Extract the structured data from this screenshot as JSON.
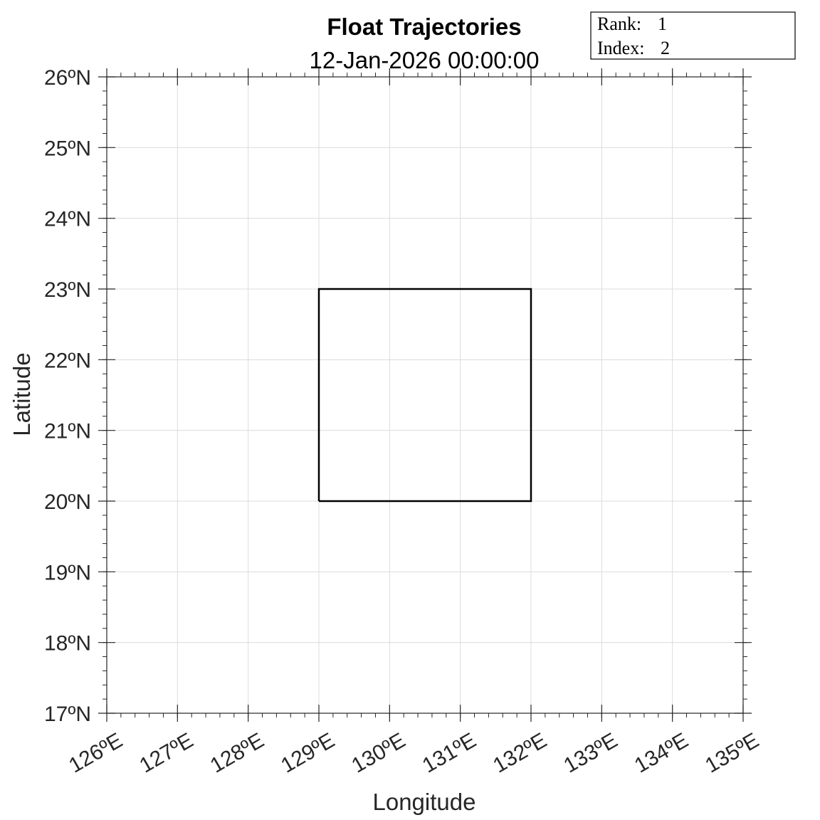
{
  "title": "Float Trajectories",
  "subtitle": "12-Jan-2026 00:00:00",
  "info_box": {
    "rank_label": "Rank:",
    "rank_value": "1",
    "index_label": "Index:",
    "index_value": "2"
  },
  "colors": {
    "grid": "#dcdcdc",
    "axis": "#262626",
    "region": "#000000"
  },
  "chart_data": {
    "type": "line",
    "xlabel": "Longitude",
    "ylabel": "Latitude",
    "xlim": [
      126,
      135
    ],
    "ylim": [
      17,
      26
    ],
    "grid": true,
    "x_ticks": [
      126,
      127,
      128,
      129,
      130,
      131,
      132,
      133,
      134,
      135
    ],
    "x_tick_labels": [
      "126ºE",
      "127ºE",
      "128ºE",
      "129ºE",
      "130ºE",
      "131ºE",
      "132ºE",
      "133ºE",
      "134ºE",
      "135ºE"
    ],
    "y_ticks": [
      17,
      18,
      19,
      20,
      21,
      22,
      23,
      24,
      25,
      26
    ],
    "y_tick_labels": [
      "17ºN",
      "18ºN",
      "19ºN",
      "20ºN",
      "21ºN",
      "22ºN",
      "23ºN",
      "24ºN",
      "25ºN",
      "26ºN"
    ],
    "series": [
      {
        "x": [
          129,
          132,
          132,
          129,
          129
        ],
        "y": [
          20,
          20,
          23,
          23,
          20
        ]
      }
    ]
  }
}
